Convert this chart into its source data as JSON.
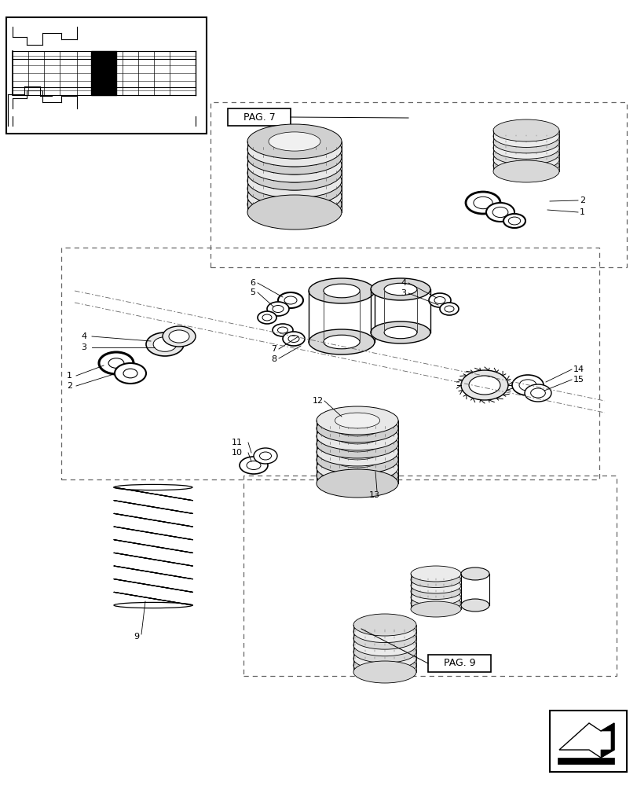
{
  "bg_color": "#ffffff",
  "line_color": "#000000",
  "fig_width": 8.12,
  "fig_height": 10.0,
  "pag7_label": "PAG. 7",
  "pag9_label": "PAG. 9",
  "labels": {
    "1a": "1",
    "2a": "2",
    "3a": "3",
    "4a": "4",
    "5": "5",
    "6": "6",
    "7": "7",
    "8": "8",
    "9": "9",
    "10": "10",
    "11": "11",
    "12": "12",
    "13": "13",
    "14": "14",
    "15": "15",
    "3b": "3",
    "4b": "4",
    "1b": "1",
    "2b": "2"
  }
}
